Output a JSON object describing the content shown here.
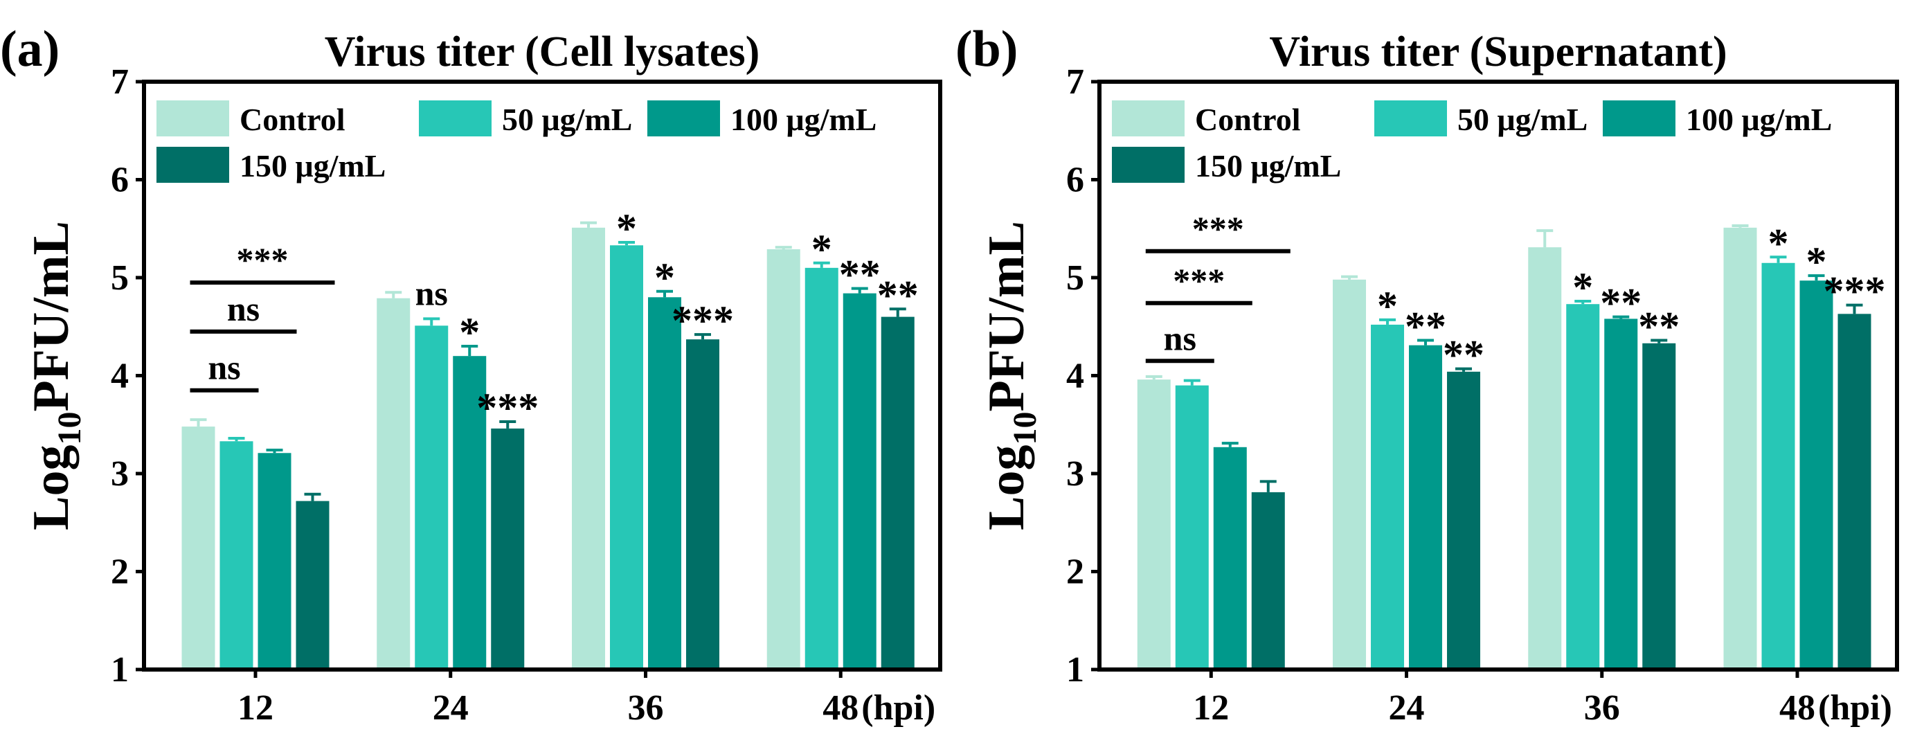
{
  "colors": [
    "#b2e6d7",
    "#27c7b6",
    "#00998b",
    "#006f66"
  ],
  "chart_data": [
    {
      "type": "bar",
      "panel_label": "(a)",
      "title": "Virus titer (Cell lysates)",
      "ylabel_main": "Log",
      "ylabel_sub": "10",
      "ylabel_rest": "PFU/mL",
      "xlabel_suffix": "(hpi)",
      "ylim": [
        1,
        7
      ],
      "yticks": [
        "1",
        "2",
        "3",
        "4",
        "5",
        "6",
        "7"
      ],
      "categories": [
        "12",
        "24",
        "36",
        "48"
      ],
      "legend": [
        "Control",
        "50 μg/mL",
        "100 μg/mL",
        "150 μg/mL"
      ],
      "series": [
        {
          "name": "Control",
          "values": [
            3.48,
            4.79,
            5.51,
            5.29
          ],
          "errors": [
            0.07,
            0.06,
            0.05,
            0.02
          ]
        },
        {
          "name": "50 μg/mL",
          "values": [
            3.33,
            4.51,
            5.33,
            5.1
          ],
          "errors": [
            0.03,
            0.07,
            0.03,
            0.05
          ]
        },
        {
          "name": "100 μg/mL",
          "values": [
            3.21,
            4.2,
            4.8,
            4.84
          ],
          "errors": [
            0.03,
            0.1,
            0.06,
            0.05
          ]
        },
        {
          "name": "150 μg/mL",
          "values": [
            2.72,
            3.46,
            4.37,
            4.6
          ],
          "errors": [
            0.07,
            0.07,
            0.05,
            0.08
          ]
        }
      ],
      "brackets": [
        {
          "to_series": 1,
          "y": 3.85,
          "label": "ns"
        },
        {
          "to_series": 2,
          "y": 4.45,
          "label": "ns"
        },
        {
          "to_series": 3,
          "y": 4.95,
          "label": "***"
        }
      ],
      "bar_annotations": [
        {
          "category": 1,
          "series": 1,
          "label": "ns"
        },
        {
          "category": 1,
          "series": 2,
          "label": "*"
        },
        {
          "category": 1,
          "series": 3,
          "label": "***"
        },
        {
          "category": 2,
          "series": 1,
          "label": "*"
        },
        {
          "category": 2,
          "series": 2,
          "label": "*"
        },
        {
          "category": 2,
          "series": 3,
          "label": "***"
        },
        {
          "category": 3,
          "series": 1,
          "label": "*"
        },
        {
          "category": 3,
          "series": 2,
          "label": "**"
        },
        {
          "category": 3,
          "series": 3,
          "label": "**"
        }
      ]
    },
    {
      "type": "bar",
      "panel_label": "(b)",
      "title": "Virus titer (Supernatant)",
      "ylabel_main": "Log",
      "ylabel_sub": "10",
      "ylabel_rest": "PFU/mL",
      "xlabel_suffix": "(hpi)",
      "ylim": [
        1,
        7
      ],
      "yticks": [
        "1",
        "2",
        "3",
        "4",
        "5",
        "6",
        "7"
      ],
      "categories": [
        "12",
        "24",
        "36",
        "48"
      ],
      "legend": [
        "Control",
        "50 μg/mL",
        "100 μg/mL",
        "150 μg/mL"
      ],
      "series": [
        {
          "name": "Control",
          "values": [
            3.96,
            4.98,
            5.31,
            5.51
          ],
          "errors": [
            0.03,
            0.03,
            0.17,
            0.02
          ]
        },
        {
          "name": "50 μg/mL",
          "values": [
            3.9,
            4.52,
            4.73,
            5.15
          ],
          "errors": [
            0.05,
            0.05,
            0.03,
            0.06
          ]
        },
        {
          "name": "100 μg/mL",
          "values": [
            3.27,
            4.31,
            4.58,
            4.97
          ],
          "errors": [
            0.04,
            0.05,
            0.02,
            0.05
          ]
        },
        {
          "name": "150 μg/mL",
          "values": [
            2.81,
            4.04,
            4.33,
            4.63
          ],
          "errors": [
            0.11,
            0.03,
            0.03,
            0.09
          ]
        }
      ],
      "brackets": [
        {
          "to_series": 1,
          "y": 4.15,
          "label": "ns"
        },
        {
          "to_series": 2,
          "y": 4.74,
          "label": "***"
        },
        {
          "to_series": 3,
          "y": 5.27,
          "label": "***"
        }
      ],
      "bar_annotations": [
        {
          "category": 1,
          "series": 1,
          "label": "*"
        },
        {
          "category": 1,
          "series": 2,
          "label": "**"
        },
        {
          "category": 1,
          "series": 3,
          "label": "**"
        },
        {
          "category": 2,
          "series": 1,
          "label": "*"
        },
        {
          "category": 2,
          "series": 2,
          "label": "**"
        },
        {
          "category": 2,
          "series": 3,
          "label": "**"
        },
        {
          "category": 3,
          "series": 1,
          "label": "*"
        },
        {
          "category": 3,
          "series": 2,
          "label": "*"
        },
        {
          "category": 3,
          "series": 3,
          "label": "***"
        }
      ]
    }
  ]
}
